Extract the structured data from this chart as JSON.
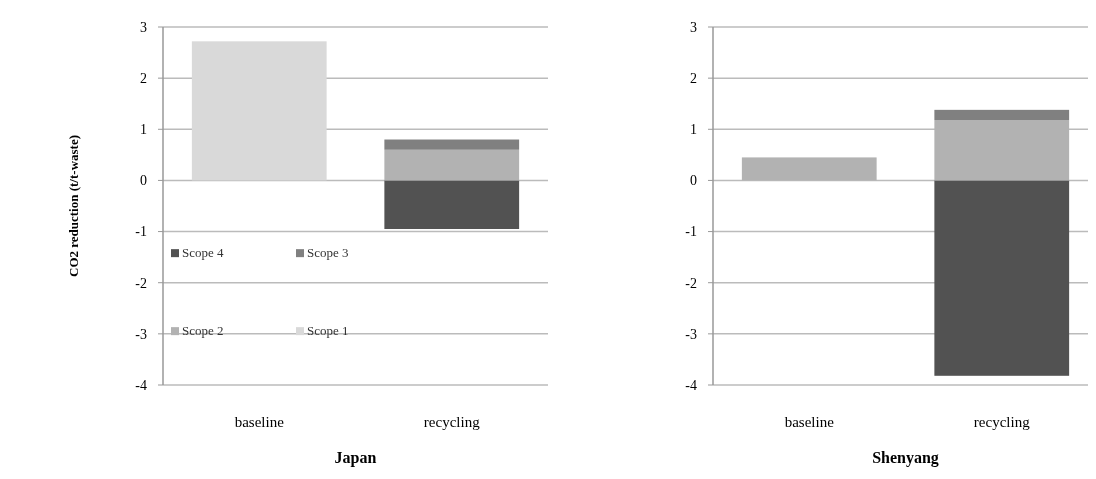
{
  "chart_data": [
    {
      "type": "bar",
      "title": "Japan",
      "ylabel": "CO2 reduction (t/t-waste)",
      "categories": [
        "baseline",
        "recycling"
      ],
      "stacked": true,
      "ylim": [
        -4,
        3
      ],
      "yticks": [
        -4,
        -3,
        -2,
        -1,
        0,
        1,
        2,
        3
      ],
      "grid": "y",
      "legend": "bottom left",
      "series": [
        {
          "name": "Scope 4",
          "color": "#525252",
          "values": [
            0,
            -0.95
          ]
        },
        {
          "name": "Scope 2",
          "color": "#b2b2b2",
          "values": [
            0,
            0.6
          ]
        },
        {
          "name": "Scope 3",
          "color": "#808080",
          "values": [
            0,
            0.2
          ]
        },
        {
          "name": "Scope 1",
          "color": "#d9d9d9",
          "values": [
            2.72,
            0
          ]
        }
      ]
    },
    {
      "type": "bar",
      "title": "Shenyang",
      "categories": [
        "baseline",
        "recycling"
      ],
      "stacked": true,
      "ylim": [
        -4,
        3
      ],
      "yticks": [
        -4,
        -3,
        -2,
        -1,
        0,
        1,
        2,
        3
      ],
      "grid": "y",
      "legend": false,
      "series": [
        {
          "color": "#525252",
          "values": [
            0,
            -3.82
          ]
        },
        {
          "color": "#b2b2b2",
          "values": [
            0.45,
            1.18
          ]
        },
        {
          "color": "#808080",
          "values": [
            0,
            0.2
          ]
        }
      ]
    }
  ]
}
